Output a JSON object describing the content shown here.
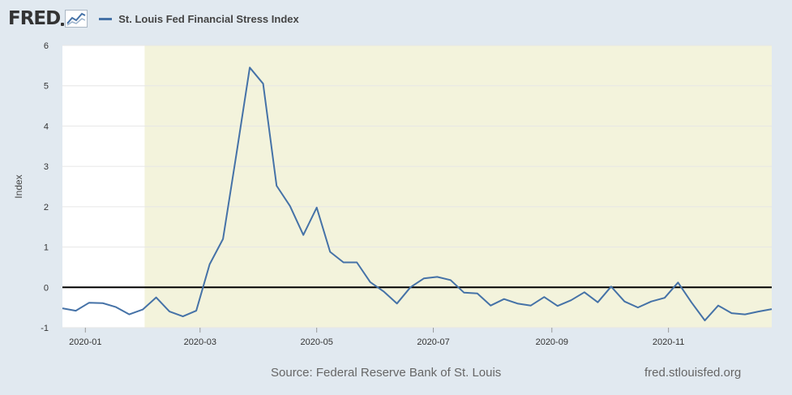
{
  "brand": {
    "logo_text": "FRED",
    "logo_icon": "chart-line-icon"
  },
  "legend": {
    "label": "St. Louis Fed Financial Stress Index",
    "color": "#4572a7"
  },
  "footer": {
    "source": "Source: Federal Reserve Bank of St. Louis",
    "site": "fred.stlouisfed.org"
  },
  "colors": {
    "background": "#e1e9f0",
    "plot": "#ffffff",
    "recession": "#f3f3dc",
    "line": "#4572a7",
    "zero_line": "#000000"
  },
  "chart_data": {
    "type": "line",
    "title": "",
    "xlabel": "",
    "ylabel": "Index",
    "ylim": [
      -1,
      6
    ],
    "xlim": [
      "2019-12-20",
      "2020-12-25"
    ],
    "yticks": [
      -1,
      0,
      1,
      2,
      3,
      4,
      5,
      6
    ],
    "xticks": [
      "2020-01",
      "2020-03",
      "2020-05",
      "2020-07",
      "2020-09",
      "2020-11"
    ],
    "shaded_region": {
      "label": "",
      "start": "2020-02-01",
      "end": "2020-12-25"
    },
    "grid": true,
    "series": [
      {
        "name": "St. Louis Fed Financial Stress Index",
        "x": [
          "2019-12-20",
          "2019-12-27",
          "2020-01-03",
          "2020-01-10",
          "2020-01-17",
          "2020-01-24",
          "2020-01-31",
          "2020-02-07",
          "2020-02-14",
          "2020-02-21",
          "2020-02-28",
          "2020-03-06",
          "2020-03-13",
          "2020-03-20",
          "2020-03-27",
          "2020-04-03",
          "2020-04-10",
          "2020-04-17",
          "2020-04-24",
          "2020-05-01",
          "2020-05-08",
          "2020-05-15",
          "2020-05-22",
          "2020-05-29",
          "2020-06-05",
          "2020-06-12",
          "2020-06-19",
          "2020-06-26",
          "2020-07-03",
          "2020-07-10",
          "2020-07-17",
          "2020-07-24",
          "2020-07-31",
          "2020-08-07",
          "2020-08-14",
          "2020-08-21",
          "2020-08-28",
          "2020-09-04",
          "2020-09-11",
          "2020-09-18",
          "2020-09-25",
          "2020-10-02",
          "2020-10-09",
          "2020-10-16",
          "2020-10-23",
          "2020-10-30",
          "2020-11-06",
          "2020-11-13",
          "2020-11-20",
          "2020-11-27",
          "2020-12-04",
          "2020-12-11",
          "2020-12-18",
          "2020-12-25"
        ],
        "y": [
          -0.52,
          -0.58,
          -0.38,
          -0.39,
          -0.49,
          -0.67,
          -0.55,
          -0.25,
          -0.6,
          -0.72,
          -0.58,
          0.57,
          1.2,
          3.3,
          5.45,
          5.05,
          2.52,
          2.02,
          1.3,
          1.98,
          0.88,
          0.62,
          0.62,
          0.13,
          -0.1,
          -0.4,
          0.0,
          0.22,
          0.26,
          0.18,
          -0.13,
          -0.15,
          -0.45,
          -0.29,
          -0.4,
          -0.45,
          -0.24,
          -0.46,
          -0.32,
          -0.12,
          -0.37,
          0.02,
          -0.35,
          -0.5,
          -0.35,
          -0.26,
          0.12,
          -0.37,
          -0.82,
          -0.45,
          -0.64,
          -0.67,
          -0.6,
          -0.54
        ]
      }
    ]
  }
}
